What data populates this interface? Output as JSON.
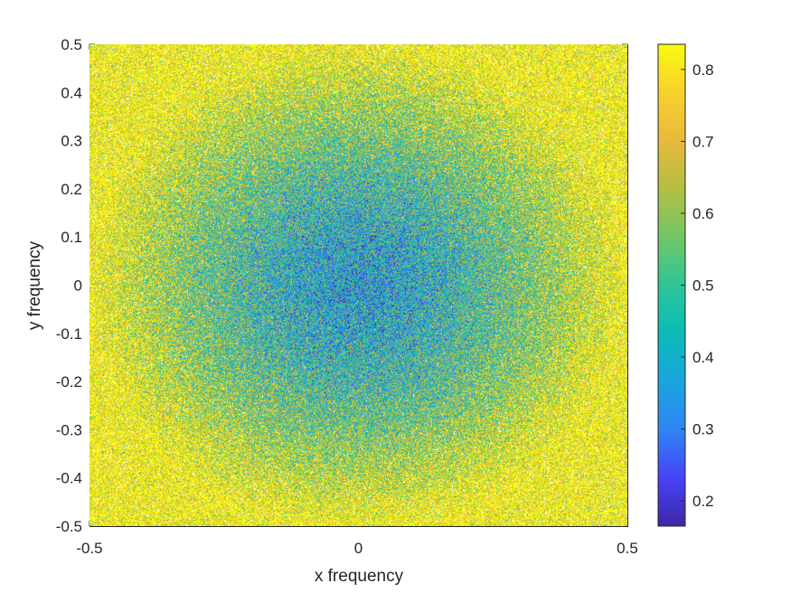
{
  "chart_data": {
    "type": "heatmap",
    "title": "",
    "xlabel": "x frequency",
    "ylabel": "y frequency",
    "xlim": [
      -0.5,
      0.5
    ],
    "ylim": [
      -0.5,
      0.5
    ],
    "xticks": [
      -0.5,
      0,
      0.5
    ],
    "xtick_labels": [
      "-0.5",
      "0",
      "0.5"
    ],
    "yticks": [
      0.5,
      0.4,
      0.3,
      0.2,
      0.1,
      0,
      -0.1,
      -0.2,
      -0.3,
      -0.4,
      -0.5
    ],
    "ytick_labels": [
      "0.5",
      "0.4",
      "0.3",
      "0.2",
      "0.1",
      "0",
      "-0.1",
      "-0.2",
      "-0.3",
      "-0.4",
      "-0.5"
    ],
    "colorbar": {
      "limits": [
        0.165,
        0.835
      ],
      "ticks": [
        0.8,
        0.7,
        0.6,
        0.5,
        0.4,
        0.3,
        0.2
      ],
      "tick_labels": [
        "0.8",
        "0.7",
        "0.6",
        "0.5",
        "0.4",
        "0.3",
        "0.2"
      ],
      "colormap": "parula"
    },
    "pattern": {
      "description_values": "noisy radial field: low values (~0.2-0.45) near origin rising to ~0.8 toward edges",
      "center_value": 0.38,
      "edge_value": 0.8,
      "nan_fraction_edges": 0.06
    },
    "grid": false
  },
  "colors": {
    "parula": [
      "#3e26a8",
      "#4743f8",
      "#2f85f4",
      "#1aa5de",
      "#0bbbb9",
      "#2ec598",
      "#71c765",
      "#b3bf44",
      "#e7ba3b",
      "#f9d12f",
      "#f9fb0e"
    ],
    "axis": "#262626"
  }
}
